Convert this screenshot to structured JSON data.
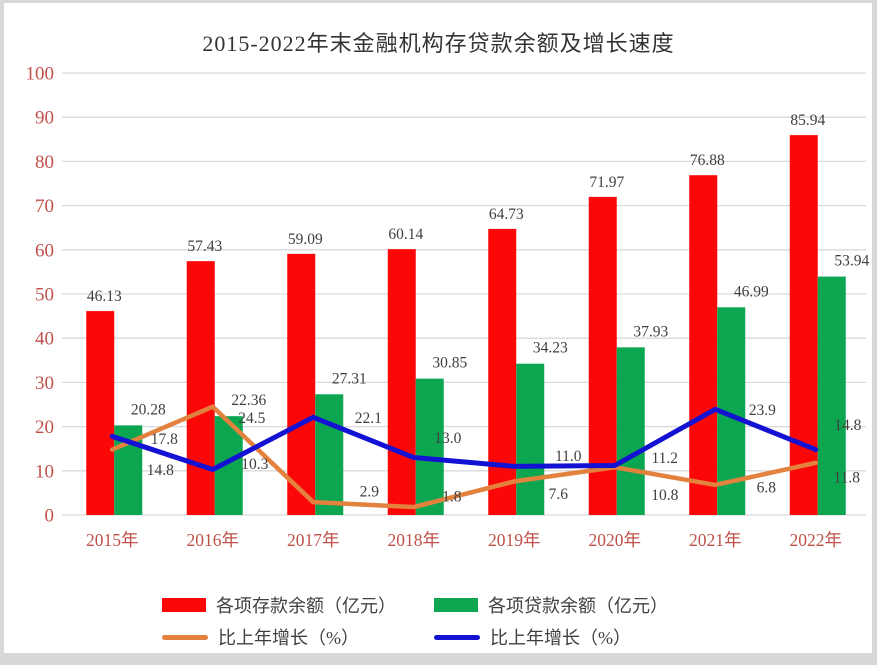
{
  "page": {
    "outer_background": "#d8d8d8",
    "surface": "#ffffff"
  },
  "chart_data": {
    "type": "bar+line combo",
    "title": "2015-2022年末金融机构存贷款余额及增长速度",
    "categories": [
      "2015年",
      "2016年",
      "2017年",
      "2018年",
      "2019年",
      "2020年",
      "2021年",
      "2022年"
    ],
    "series": [
      {
        "name": "各项存款余额（亿元）",
        "type": "bar",
        "color": "#fb0707",
        "values": [
          46.13,
          57.43,
          59.09,
          60.14,
          64.73,
          71.97,
          76.88,
          85.94
        ],
        "labels": [
          "46.13",
          "57.43",
          "59.09",
          "60.14",
          "64.73",
          "71.97",
          "76.88",
          "85.94"
        ]
      },
      {
        "name": "各项贷款余额（亿元）",
        "type": "bar",
        "color": "#0ca650",
        "values": [
          20.28,
          22.36,
          27.31,
          30.85,
          34.23,
          37.93,
          46.99,
          53.94
        ],
        "labels": [
          "20.28",
          "22.36",
          "27.31",
          "30.85",
          "34.23",
          "37.93",
          "46.99",
          "53.94"
        ]
      },
      {
        "name": "比上年增长（%）",
        "type": "line",
        "color": "#e2823e",
        "values": [
          14.8,
          24.5,
          2.9,
          1.8,
          7.6,
          10.8,
          6.8,
          11.8
        ],
        "labels": [
          "14.8",
          "24.5",
          "2.9",
          "1.8",
          "7.6",
          "10.8",
          "6.8",
          "11.8"
        ]
      },
      {
        "name": "比上年增长（%）",
        "type": "line",
        "color": "#1412d2",
        "values": [
          17.8,
          10.3,
          22.1,
          13.0,
          11.0,
          11.2,
          23.9,
          14.8
        ],
        "labels": [
          "17.8",
          "10.3",
          "22.1",
          "13.0",
          "11.0",
          "11.2",
          "23.9",
          "14.8"
        ]
      }
    ],
    "ylim": [
      0,
      100
    ],
    "ytick_step": 10,
    "grid": true,
    "legend_position": "bottom",
    "colors": {
      "axis_label": "#bf5049",
      "data_label": "#3f3f3f",
      "gridline": "#d9d9d9",
      "title": "#333333"
    }
  }
}
